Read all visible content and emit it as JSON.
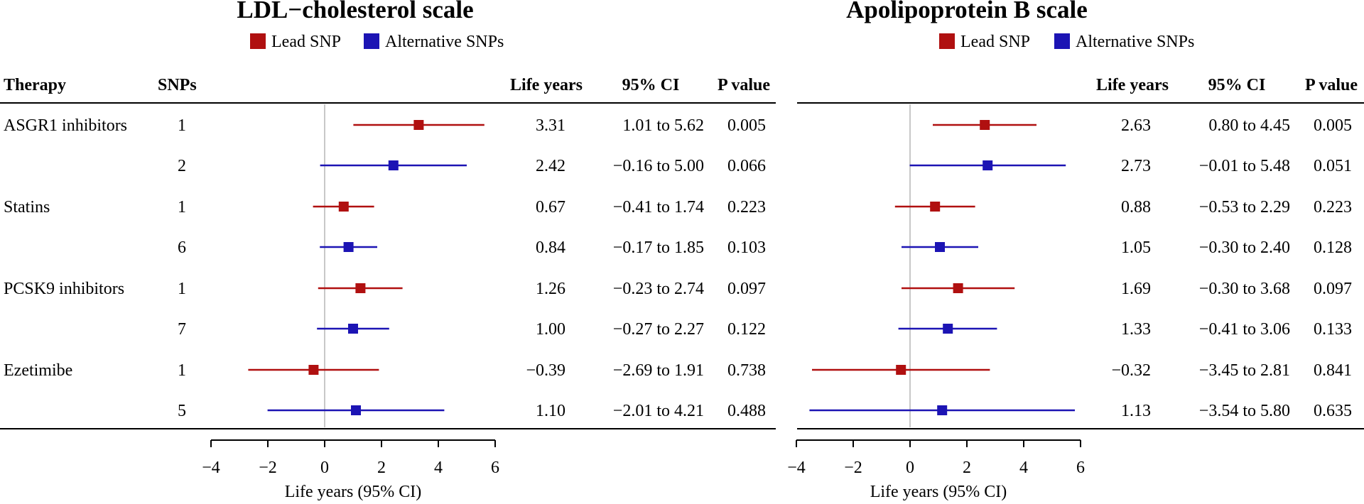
{
  "chart_data": {
    "type": "forest",
    "legend": {
      "lead_label": "Lead SNP",
      "alt_label": "Alternative SNPs",
      "lead_color": "#b01010",
      "alt_color": "#1c14b4",
      "position": "top-center"
    },
    "columns": {
      "therapy": "Therapy",
      "snps": "SNPs",
      "life_years": "Life years",
      "ci": "95% CI",
      "p": "P value"
    },
    "rows": [
      {
        "therapy": "ASGR1 inhibitors",
        "snps": "1",
        "kind": "lead"
      },
      {
        "therapy": "",
        "snps": "2",
        "kind": "alt"
      },
      {
        "therapy": "Statins",
        "snps": "1",
        "kind": "lead"
      },
      {
        "therapy": "",
        "snps": "6",
        "kind": "alt"
      },
      {
        "therapy": "PCSK9 inhibitors",
        "snps": "1",
        "kind": "lead"
      },
      {
        "therapy": "",
        "snps": "7",
        "kind": "alt"
      },
      {
        "therapy": "Ezetimibe",
        "snps": "1",
        "kind": "lead"
      },
      {
        "therapy": "",
        "snps": "5",
        "kind": "alt"
      }
    ],
    "panels": [
      {
        "title": "LDL−cholesterol scale",
        "xlabel": "Life years (95% CI)",
        "xlim": [
          -4,
          6
        ],
        "ticks": [
          -4,
          -2,
          0,
          2,
          4,
          6
        ],
        "tick_labels": [
          "−4",
          "−2",
          "0",
          "2",
          "4",
          "6"
        ],
        "rows": [
          {
            "est": 3.31,
            "lo": 1.01,
            "hi": 5.62,
            "est_label": "3.31",
            "ci_label": "1.01 to 5.62",
            "p_label": "0.005"
          },
          {
            "est": 2.42,
            "lo": -0.16,
            "hi": 5.0,
            "est_label": "2.42",
            "ci_label": "−0.16 to 5.00",
            "p_label": "0.066"
          },
          {
            "est": 0.67,
            "lo": -0.41,
            "hi": 1.74,
            "est_label": "0.67",
            "ci_label": "−0.41 to 1.74",
            "p_label": "0.223"
          },
          {
            "est": 0.84,
            "lo": -0.17,
            "hi": 1.85,
            "est_label": "0.84",
            "ci_label": "−0.17 to 1.85",
            "p_label": "0.103"
          },
          {
            "est": 1.26,
            "lo": -0.23,
            "hi": 2.74,
            "est_label": "1.26",
            "ci_label": "−0.23 to 2.74",
            "p_label": "0.097"
          },
          {
            "est": 1.0,
            "lo": -0.27,
            "hi": 2.27,
            "est_label": "1.00",
            "ci_label": "−0.27 to 2.27",
            "p_label": "0.122"
          },
          {
            "est": -0.39,
            "lo": -2.69,
            "hi": 1.91,
            "est_label": "−0.39",
            "ci_label": "−2.69 to 1.91",
            "p_label": "0.738"
          },
          {
            "est": 1.1,
            "lo": -2.01,
            "hi": 4.21,
            "est_label": "1.10",
            "ci_label": "−2.01 to 4.21",
            "p_label": "0.488"
          }
        ]
      },
      {
        "title": "Apolipoprotein B scale",
        "xlabel": "Life years (95% CI)",
        "xlim": [
          -4,
          6
        ],
        "ticks": [
          -4,
          -2,
          0,
          2,
          4,
          6
        ],
        "tick_labels": [
          "−4",
          "−2",
          "0",
          "2",
          "4",
          "6"
        ],
        "rows": [
          {
            "est": 2.63,
            "lo": 0.8,
            "hi": 4.45,
            "est_label": "2.63",
            "ci_label": "0.80 to 4.45",
            "p_label": "0.005"
          },
          {
            "est": 2.73,
            "lo": -0.01,
            "hi": 5.48,
            "est_label": "2.73",
            "ci_label": "−0.01 to 5.48",
            "p_label": "0.051"
          },
          {
            "est": 0.88,
            "lo": -0.53,
            "hi": 2.29,
            "est_label": "0.88",
            "ci_label": "−0.53 to 2.29",
            "p_label": "0.223"
          },
          {
            "est": 1.05,
            "lo": -0.3,
            "hi": 2.4,
            "est_label": "1.05",
            "ci_label": "−0.30 to 2.40",
            "p_label": "0.128"
          },
          {
            "est": 1.69,
            "lo": -0.3,
            "hi": 3.68,
            "est_label": "1.69",
            "ci_label": "−0.30 to 3.68",
            "p_label": "0.097"
          },
          {
            "est": 1.33,
            "lo": -0.41,
            "hi": 3.06,
            "est_label": "1.33",
            "ci_label": "−0.41 to 3.06",
            "p_label": "0.133"
          },
          {
            "est": -0.32,
            "lo": -3.45,
            "hi": 2.81,
            "est_label": "−0.32",
            "ci_label": "−3.45 to 2.81",
            "p_label": "0.841"
          },
          {
            "est": 1.13,
            "lo": -3.54,
            "hi": 5.8,
            "est_label": "1.13",
            "ci_label": "−3.54 to 5.80",
            "p_label": "0.635"
          }
        ]
      }
    ]
  }
}
